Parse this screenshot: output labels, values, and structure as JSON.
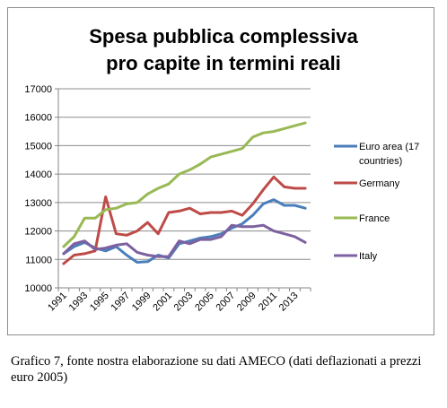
{
  "chart_data": {
    "type": "line",
    "title_lines": [
      "Spesa pubblica complessiva",
      "pro capite in termini reali"
    ],
    "x": [
      "1991",
      "1992",
      "1993",
      "1994",
      "1995",
      "1996",
      "1997",
      "1998",
      "1999",
      "2000",
      "2001",
      "2002",
      "2003",
      "2004",
      "2005",
      "2006",
      "2007",
      "2008",
      "2009",
      "2010",
      "2011",
      "2012",
      "2013",
      "2014"
    ],
    "x_tick_labels": [
      "1991",
      "1993",
      "1995",
      "1997",
      "1999",
      "2001",
      "2003",
      "2005",
      "2007",
      "2009",
      "2011",
      "2013"
    ],
    "ylim": [
      10000,
      17000
    ],
    "y_ticks": [
      "10000",
      "11000",
      "12000",
      "13000",
      "14000",
      "15000",
      "16000",
      "17000"
    ],
    "grid": true,
    "legend_position": "right",
    "series": [
      {
        "name": "Euro area (17 countries)",
        "legend_lines": [
          "Euro area (17",
          "countries)"
        ],
        "color": "#4a7ebb",
        "values": [
          11200,
          11450,
          11600,
          11400,
          11300,
          11450,
          11150,
          10900,
          10920,
          11150,
          11050,
          11550,
          11650,
          11750,
          11800,
          11900,
          12100,
          12250,
          12550,
          12950,
          13100,
          12900,
          12900,
          12800
        ]
      },
      {
        "name": "Germany",
        "legend_lines": [
          "Germany"
        ],
        "color": "#be4b48",
        "values": [
          10850,
          11150,
          11200,
          11300,
          13200,
          11900,
          11850,
          12000,
          12300,
          11900,
          12650,
          12700,
          12800,
          12600,
          12650,
          12650,
          12700,
          12550,
          12950,
          13450,
          13900,
          13550,
          13500,
          13500
        ]
      },
      {
        "name": "France",
        "legend_lines": [
          "France"
        ],
        "color": "#98b954",
        "values": [
          11450,
          11800,
          12450,
          12450,
          12750,
          12800,
          12950,
          13000,
          13300,
          13500,
          13650,
          14000,
          14150,
          14350,
          14600,
          14700,
          14800,
          14900,
          15300,
          15450,
          15500,
          15600,
          15700,
          15800
        ]
      },
      {
        "name": "Italy",
        "legend_lines": [
          "Italy"
        ],
        "color": "#7d60a0",
        "values": [
          11200,
          11550,
          11650,
          11350,
          11400,
          11500,
          11550,
          11250,
          11150,
          11100,
          11100,
          11650,
          11550,
          11700,
          11700,
          11800,
          12200,
          12150,
          12150,
          12200,
          12000,
          11900,
          11800,
          11600
        ]
      }
    ]
  },
  "caption": "Grafico 7, fonte nostra elaborazione su dati AMECO (dati deflazionati a prezzi euro 2005)"
}
